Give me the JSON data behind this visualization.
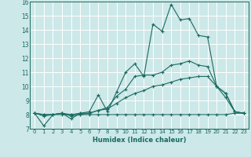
{
  "xlabel": "Humidex (Indice chaleur)",
  "xlim": [
    -0.5,
    23.5
  ],
  "ylim": [
    7,
    16
  ],
  "xticks": [
    0,
    1,
    2,
    3,
    4,
    5,
    6,
    7,
    8,
    9,
    10,
    11,
    12,
    13,
    14,
    15,
    16,
    17,
    18,
    19,
    20,
    21,
    22,
    23
  ],
  "yticks": [
    7,
    8,
    9,
    10,
    11,
    12,
    13,
    14,
    15,
    16
  ],
  "bg_color": "#cce8e8",
  "line_color": "#1a6a60",
  "grid_color": "#b0d8d8",
  "lines": [
    [
      8.1,
      7.2,
      8.0,
      8.1,
      7.7,
      8.1,
      8.2,
      9.4,
      8.2,
      9.6,
      11.0,
      11.6,
      10.7,
      14.4,
      13.9,
      15.8,
      14.7,
      14.8,
      13.6,
      13.5,
      10.0,
      9.5,
      8.2,
      8.1
    ],
    [
      8.1,
      7.9,
      8.0,
      8.1,
      8.0,
      8.1,
      8.1,
      8.3,
      8.5,
      9.3,
      9.8,
      10.7,
      10.8,
      10.8,
      11.0,
      11.5,
      11.6,
      11.8,
      11.5,
      11.4,
      10.0,
      9.5,
      8.2,
      8.1
    ],
    [
      8.1,
      8.0,
      8.0,
      8.1,
      7.9,
      8.0,
      8.1,
      8.3,
      8.4,
      8.8,
      9.2,
      9.5,
      9.7,
      10.0,
      10.1,
      10.3,
      10.5,
      10.6,
      10.7,
      10.7,
      10.0,
      9.2,
      8.2,
      8.1
    ],
    [
      8.1,
      8.0,
      8.0,
      8.0,
      8.0,
      8.0,
      8.0,
      8.0,
      8.0,
      8.0,
      8.0,
      8.0,
      8.0,
      8.0,
      8.0,
      8.0,
      8.0,
      8.0,
      8.0,
      8.0,
      8.0,
      8.0,
      8.1,
      8.1
    ]
  ]
}
